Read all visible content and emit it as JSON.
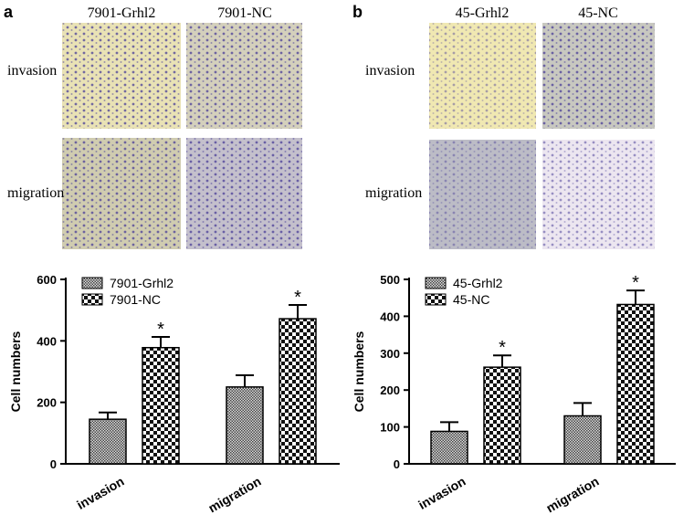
{
  "panels": [
    {
      "letter": "a",
      "columns": [
        "7901-Grhl2",
        "7901-NC"
      ],
      "rows": [
        "invasion",
        "migration"
      ]
    },
    {
      "letter": "b",
      "columns": [
        "45-Grhl2",
        "45-NC"
      ],
      "rows": [
        "invasion",
        "migration"
      ]
    }
  ],
  "chart_data": [
    {
      "type": "bar",
      "y_label": "Cell numbers",
      "categories": [
        "invasion",
        "migration"
      ],
      "ylim": [
        0,
        600
      ],
      "yticks": [
        0,
        200,
        400,
        600
      ],
      "legend": "upper left",
      "series": [
        {
          "name": "7901-Grhl2",
          "values": [
            145,
            250
          ],
          "errors": [
            22,
            38
          ]
        },
        {
          "name": "7901-NC",
          "values": [
            378,
            472
          ],
          "errors": [
            35,
            45
          ],
          "significance": [
            "*",
            "*"
          ]
        }
      ]
    },
    {
      "type": "bar",
      "y_label": "Cell numbers",
      "categories": [
        "invasion",
        "migration"
      ],
      "ylim": [
        0,
        500
      ],
      "yticks": [
        0,
        100,
        200,
        300,
        400,
        500
      ],
      "legend": "upper left",
      "series": [
        {
          "name": "45-Grhl2",
          "values": [
            88,
            130
          ],
          "errors": [
            25,
            35
          ]
        },
        {
          "name": "45-NC",
          "values": [
            262,
            432
          ],
          "errors": [
            32,
            38
          ],
          "significance": [
            "*",
            "*"
          ]
        }
      ]
    }
  ]
}
